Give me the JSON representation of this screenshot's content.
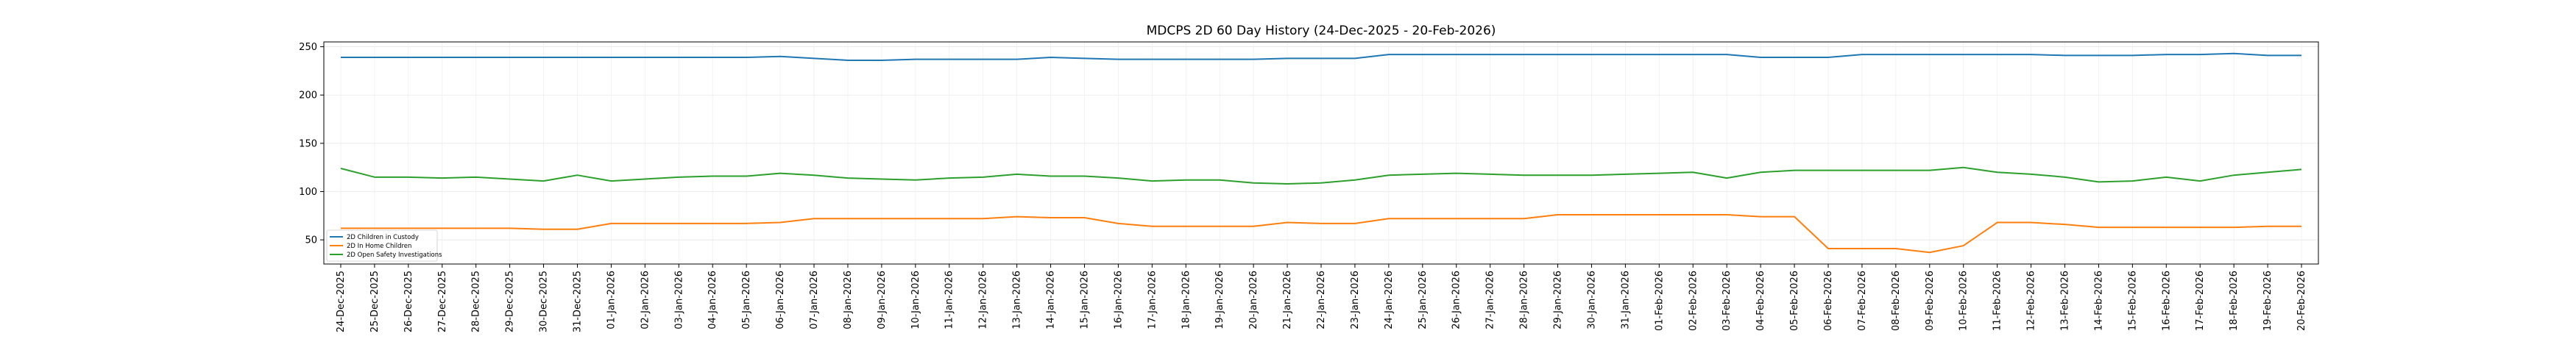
{
  "chart_data": {
    "type": "line",
    "title": "MDCPS 2D 60 Day History (24-Dec-2025 - 20-Feb-2026)",
    "xlabel": "",
    "ylabel": "",
    "ylim": [
      25,
      255
    ],
    "yticks": [
      50,
      100,
      150,
      200,
      250
    ],
    "grid": true,
    "legend_position": "lower-left",
    "categories": [
      "24-Dec-2025",
      "25-Dec-2025",
      "26-Dec-2025",
      "27-Dec-2025",
      "28-Dec-2025",
      "29-Dec-2025",
      "30-Dec-2025",
      "31-Dec-2025",
      "01-Jan-2026",
      "02-Jan-2026",
      "03-Jan-2026",
      "04-Jan-2026",
      "05-Jan-2026",
      "06-Jan-2026",
      "07-Jan-2026",
      "08-Jan-2026",
      "09-Jan-2026",
      "10-Jan-2026",
      "11-Jan-2026",
      "12-Jan-2026",
      "13-Jan-2026",
      "14-Jan-2026",
      "15-Jan-2026",
      "16-Jan-2026",
      "17-Jan-2026",
      "18-Jan-2026",
      "19-Jan-2026",
      "20-Jan-2026",
      "21-Jan-2026",
      "22-Jan-2026",
      "23-Jan-2026",
      "24-Jan-2026",
      "25-Jan-2026",
      "26-Jan-2026",
      "27-Jan-2026",
      "28-Jan-2026",
      "29-Jan-2026",
      "30-Jan-2026",
      "31-Jan-2026",
      "01-Feb-2026",
      "02-Feb-2026",
      "03-Feb-2026",
      "04-Feb-2026",
      "05-Feb-2026",
      "06-Feb-2026",
      "07-Feb-2026",
      "08-Feb-2026",
      "09-Feb-2026",
      "10-Feb-2026",
      "11-Feb-2026",
      "12-Feb-2026",
      "13-Feb-2026",
      "14-Feb-2026",
      "15-Feb-2026",
      "16-Feb-2026",
      "17-Feb-2026",
      "18-Feb-2026",
      "19-Feb-2026",
      "20-Feb-2026"
    ],
    "series": [
      {
        "name": "2D Children in Custody",
        "color": "#1f77b4",
        "values": [
          239,
          239,
          239,
          239,
          239,
          239,
          239,
          239,
          239,
          239,
          239,
          239,
          239,
          240,
          238,
          236,
          236,
          237,
          237,
          237,
          237,
          239,
          238,
          237,
          237,
          237,
          237,
          237,
          238,
          238,
          238,
          242,
          242,
          242,
          242,
          242,
          242,
          242,
          242,
          242,
          242,
          242,
          239,
          239,
          239,
          242,
          242,
          242,
          242,
          242,
          242,
          241,
          241,
          241,
          242,
          242,
          243,
          241,
          241
        ]
      },
      {
        "name": "2D In Home Children",
        "color": "#ff7f0e",
        "values": [
          62,
          62,
          62,
          62,
          62,
          62,
          61,
          61,
          67,
          67,
          67,
          67,
          67,
          68,
          72,
          72,
          72,
          72,
          72,
          72,
          74,
          73,
          73,
          67,
          64,
          64,
          64,
          64,
          68,
          67,
          67,
          72,
          72,
          72,
          72,
          72,
          76,
          76,
          76,
          76,
          76,
          76,
          74,
          74,
          41,
          41,
          41,
          37,
          44,
          68,
          68,
          66,
          63,
          63,
          63,
          63,
          63,
          64,
          64
        ]
      },
      {
        "name": "2D Open Safety Investigations",
        "color": "#2ca02c",
        "values": [
          124,
          115,
          115,
          114,
          115,
          113,
          111,
          117,
          111,
          113,
          115,
          116,
          116,
          119,
          117,
          114,
          113,
          112,
          114,
          115,
          118,
          116,
          116,
          114,
          111,
          112,
          112,
          109,
          108,
          109,
          112,
          117,
          118,
          119,
          118,
          117,
          117,
          117,
          118,
          119,
          120,
          114,
          120,
          122,
          122,
          122,
          122,
          122,
          125,
          120,
          118,
          115,
          110,
          111,
          115,
          111,
          117,
          120,
          123
        ]
      }
    ]
  }
}
